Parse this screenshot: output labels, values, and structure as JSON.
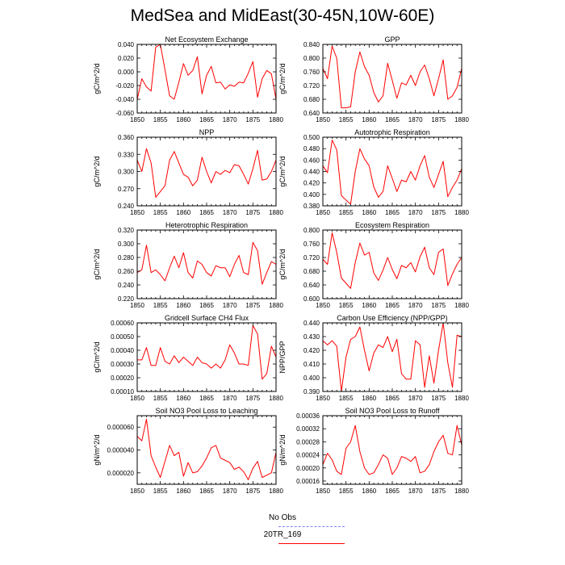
{
  "title": "MedSea and MidEast(30-45N,10W-60E)",
  "legend": {
    "items": [
      {
        "label": "No Obs",
        "color": "#8080ff",
        "style": "dashed"
      },
      {
        "label": "20TR_169",
        "color": "#ff0000",
        "style": "solid"
      }
    ]
  },
  "chart_data": [
    {
      "type": "line",
      "title": "Net Ecosystem Exchange",
      "ylabel": "gC/m^2/d",
      "xlim": [
        1850,
        1880
      ],
      "ylim": [
        -0.06,
        0.04
      ],
      "xticks": [
        1850,
        1855,
        1860,
        1865,
        1870,
        1875,
        1880
      ],
      "yticks": [
        -0.06,
        -0.04,
        -0.02,
        0.0,
        0.02,
        0.04
      ],
      "ytick_labels": [
        "-0.060",
        "-0.040",
        "-0.020",
        "0.000",
        "0.020",
        "0.040"
      ],
      "x": [
        1850,
        1851,
        1852,
        1853,
        1854,
        1855,
        1856,
        1857,
        1858,
        1859,
        1860,
        1861,
        1862,
        1863,
        1864,
        1865,
        1866,
        1867,
        1868,
        1869,
        1870,
        1871,
        1872,
        1873,
        1874,
        1875,
        1876,
        1877,
        1878,
        1879,
        1880
      ],
      "series": [
        {
          "color": "#ff0000",
          "values": [
            -0.04,
            -0.01,
            -0.022,
            -0.028,
            0.036,
            0.04,
            0.003,
            -0.035,
            -0.04,
            -0.015,
            0.012,
            -0.005,
            0.002,
            0.022,
            -0.032,
            -0.005,
            0.008,
            -0.016,
            -0.015,
            -0.025,
            -0.019,
            -0.021,
            -0.015,
            -0.016,
            -0.002,
            0.015,
            -0.037,
            -0.01,
            0.002,
            -0.003,
            -0.04
          ]
        }
      ]
    },
    {
      "type": "line",
      "title": "GPP",
      "ylabel": "gC/m^2/d",
      "xlim": [
        1850,
        1880
      ],
      "ylim": [
        0.64,
        0.84
      ],
      "xticks": [
        1850,
        1855,
        1860,
        1865,
        1870,
        1875,
        1880
      ],
      "yticks": [
        0.64,
        0.68,
        0.72,
        0.76,
        0.8,
        0.84
      ],
      "ytick_labels": [
        "0.640",
        "0.680",
        "0.720",
        "0.760",
        "0.800",
        "0.840"
      ],
      "x": [
        1850,
        1851,
        1852,
        1853,
        1854,
        1855,
        1856,
        1857,
        1858,
        1859,
        1860,
        1861,
        1862,
        1863,
        1864,
        1865,
        1866,
        1867,
        1868,
        1869,
        1870,
        1871,
        1872,
        1873,
        1874,
        1875,
        1876,
        1877,
        1878,
        1879,
        1880
      ],
      "series": [
        {
          "color": "#ff0000",
          "values": [
            0.77,
            0.74,
            0.835,
            0.8,
            0.655,
            0.655,
            0.658,
            0.76,
            0.818,
            0.775,
            0.75,
            0.7,
            0.672,
            0.69,
            0.785,
            0.735,
            0.683,
            0.728,
            0.722,
            0.75,
            0.72,
            0.76,
            0.78,
            0.74,
            0.69,
            0.74,
            0.795,
            0.68,
            0.69,
            0.715,
            0.77
          ]
        }
      ]
    },
    {
      "type": "line",
      "title": "NPP",
      "ylabel": "gC/m^2/d",
      "xlim": [
        1850,
        1880
      ],
      "ylim": [
        0.24,
        0.36
      ],
      "xticks": [
        1850,
        1855,
        1860,
        1865,
        1870,
        1875,
        1880
      ],
      "yticks": [
        0.24,
        0.27,
        0.3,
        0.33,
        0.36
      ],
      "ytick_labels": [
        "0.240",
        "0.270",
        "0.300",
        "0.330",
        "0.360"
      ],
      "x": [
        1850,
        1851,
        1852,
        1853,
        1854,
        1855,
        1856,
        1857,
        1858,
        1859,
        1860,
        1861,
        1862,
        1863,
        1864,
        1865,
        1866,
        1867,
        1868,
        1869,
        1870,
        1871,
        1872,
        1873,
        1874,
        1875,
        1876,
        1877,
        1878,
        1879,
        1880
      ],
      "series": [
        {
          "color": "#ff0000",
          "values": [
            0.32,
            0.3,
            0.34,
            0.315,
            0.255,
            0.265,
            0.275,
            0.32,
            0.335,
            0.315,
            0.295,
            0.29,
            0.275,
            0.285,
            0.325,
            0.3,
            0.28,
            0.3,
            0.295,
            0.302,
            0.298,
            0.312,
            0.31,
            0.295,
            0.278,
            0.305,
            0.337,
            0.285,
            0.287,
            0.3,
            0.32
          ]
        }
      ]
    },
    {
      "type": "line",
      "title": "Autotrophic Respiration",
      "ylabel": "gC/m^2/d",
      "xlim": [
        1850,
        1880
      ],
      "ylim": [
        0.38,
        0.5
      ],
      "xticks": [
        1850,
        1855,
        1860,
        1865,
        1870,
        1875,
        1880
      ],
      "yticks": [
        0.38,
        0.4,
        0.42,
        0.44,
        0.46,
        0.48,
        0.5
      ],
      "ytick_labels": [
        "0.380",
        "0.400",
        "0.420",
        "0.440",
        "0.460",
        "0.480",
        "0.500"
      ],
      "x": [
        1850,
        1851,
        1852,
        1853,
        1854,
        1855,
        1856,
        1857,
        1858,
        1859,
        1860,
        1861,
        1862,
        1863,
        1864,
        1865,
        1866,
        1867,
        1868,
        1869,
        1870,
        1871,
        1872,
        1873,
        1874,
        1875,
        1876,
        1877,
        1878,
        1879,
        1880
      ],
      "series": [
        {
          "color": "#ff0000",
          "values": [
            0.45,
            0.438,
            0.495,
            0.478,
            0.398,
            0.39,
            0.383,
            0.44,
            0.48,
            0.462,
            0.45,
            0.413,
            0.395,
            0.405,
            0.45,
            0.428,
            0.405,
            0.425,
            0.422,
            0.44,
            0.425,
            0.45,
            0.468,
            0.43,
            0.412,
            0.435,
            0.458,
            0.396,
            0.412,
            0.425,
            0.445
          ]
        }
      ]
    },
    {
      "type": "line",
      "title": "Heterotrophic Respiration",
      "ylabel": "gC/m^2/d",
      "xlim": [
        1850,
        1880
      ],
      "ylim": [
        0.22,
        0.32
      ],
      "xticks": [
        1850,
        1855,
        1860,
        1865,
        1870,
        1875,
        1880
      ],
      "yticks": [
        0.22,
        0.24,
        0.26,
        0.28,
        0.3,
        0.32
      ],
      "ytick_labels": [
        "0.220",
        "0.240",
        "0.260",
        "0.280",
        "0.300",
        "0.320"
      ],
      "x": [
        1850,
        1851,
        1852,
        1853,
        1854,
        1855,
        1856,
        1857,
        1858,
        1859,
        1860,
        1861,
        1862,
        1863,
        1864,
        1865,
        1866,
        1867,
        1868,
        1869,
        1870,
        1871,
        1872,
        1873,
        1874,
        1875,
        1876,
        1877,
        1878,
        1879,
        1880
      ],
      "series": [
        {
          "color": "#ff0000",
          "values": [
            0.258,
            0.262,
            0.298,
            0.258,
            0.262,
            0.255,
            0.246,
            0.265,
            0.282,
            0.265,
            0.287,
            0.258,
            0.25,
            0.275,
            0.27,
            0.258,
            0.253,
            0.268,
            0.265,
            0.265,
            0.252,
            0.27,
            0.283,
            0.258,
            0.255,
            0.302,
            0.29,
            0.241,
            0.258,
            0.274,
            0.27
          ]
        }
      ]
    },
    {
      "type": "line",
      "title": "Ecosystem Respiration",
      "ylabel": "gC/m^2/d",
      "xlim": [
        1850,
        1880
      ],
      "ylim": [
        0.6,
        0.8
      ],
      "xticks": [
        1850,
        1855,
        1860,
        1865,
        1870,
        1875,
        1880
      ],
      "yticks": [
        0.6,
        0.64,
        0.68,
        0.72,
        0.76,
        0.8
      ],
      "ytick_labels": [
        "0.600",
        "0.640",
        "0.680",
        "0.720",
        "0.760",
        "0.800"
      ],
      "x": [
        1850,
        1851,
        1852,
        1853,
        1854,
        1855,
        1856,
        1857,
        1858,
        1859,
        1860,
        1861,
        1862,
        1863,
        1864,
        1865,
        1866,
        1867,
        1868,
        1869,
        1870,
        1871,
        1872,
        1873,
        1874,
        1875,
        1876,
        1877,
        1878,
        1879,
        1880
      ],
      "series": [
        {
          "color": "#ff0000",
          "values": [
            0.715,
            0.7,
            0.792,
            0.735,
            0.66,
            0.645,
            0.63,
            0.705,
            0.762,
            0.727,
            0.735,
            0.675,
            0.653,
            0.683,
            0.72,
            0.685,
            0.658,
            0.697,
            0.69,
            0.705,
            0.678,
            0.722,
            0.75,
            0.69,
            0.67,
            0.735,
            0.745,
            0.638,
            0.672,
            0.7,
            0.72
          ]
        }
      ]
    },
    {
      "type": "line",
      "title": "Gridcell Surface CH4 Flux",
      "ylabel": "gC/m^2/d",
      "xlim": [
        1850,
        1880
      ],
      "ylim": [
        0.0001,
        0.0006
      ],
      "xticks": [
        1850,
        1855,
        1860,
        1865,
        1870,
        1875,
        1880
      ],
      "yticks": [
        0.0001,
        0.0002,
        0.0003,
        0.0004,
        0.0005,
        0.0006
      ],
      "ytick_labels": [
        "0.00010",
        "0.00020",
        "0.00030",
        "0.00040",
        "0.00050",
        "0.00060"
      ],
      "x": [
        1850,
        1851,
        1852,
        1853,
        1854,
        1855,
        1856,
        1857,
        1858,
        1859,
        1860,
        1861,
        1862,
        1863,
        1864,
        1865,
        1866,
        1867,
        1868,
        1869,
        1870,
        1871,
        1872,
        1873,
        1874,
        1875,
        1876,
        1877,
        1878,
        1879,
        1880
      ],
      "series": [
        {
          "color": "#ff0000",
          "values": [
            0.00033,
            0.00033,
            0.00042,
            0.00029,
            0.00029,
            0.00042,
            0.00032,
            0.0003,
            0.00036,
            0.00031,
            0.00035,
            0.00032,
            0.00029,
            0.00035,
            0.00031,
            0.0003,
            0.00027,
            0.0003,
            0.00027,
            0.00033,
            0.00044,
            0.00038,
            0.0003,
            0.0003,
            0.00029,
            0.00058,
            0.00052,
            0.00019,
            0.00023,
            0.00043,
            0.00035
          ]
        }
      ]
    },
    {
      "type": "line",
      "title": "Carbon Use Efficiency (NPP/GPP)",
      "ylabel": "NPP/GPP",
      "xlim": [
        1850,
        1880
      ],
      "ylim": [
        0.39,
        0.44
      ],
      "xticks": [
        1850,
        1855,
        1860,
        1865,
        1870,
        1875,
        1880
      ],
      "yticks": [
        0.39,
        0.4,
        0.41,
        0.42,
        0.43,
        0.44
      ],
      "ytick_labels": [
        "0.390",
        "0.400",
        "0.410",
        "0.420",
        "0.430",
        "0.440"
      ],
      "x": [
        1850,
        1851,
        1852,
        1853,
        1854,
        1855,
        1856,
        1857,
        1858,
        1859,
        1860,
        1861,
        1862,
        1863,
        1864,
        1865,
        1866,
        1867,
        1868,
        1869,
        1870,
        1871,
        1872,
        1873,
        1874,
        1875,
        1876,
        1877,
        1878,
        1879,
        1880
      ],
      "series": [
        {
          "color": "#ff0000",
          "values": [
            0.427,
            0.424,
            0.427,
            0.423,
            0.39,
            0.415,
            0.428,
            0.43,
            0.437,
            0.42,
            0.405,
            0.418,
            0.424,
            0.422,
            0.43,
            0.419,
            0.428,
            0.403,
            0.399,
            0.399,
            0.427,
            0.424,
            0.393,
            0.416,
            0.396,
            0.42,
            0.44,
            0.411,
            0.393,
            0.431,
            0.43
          ]
        }
      ]
    },
    {
      "type": "line",
      "title": "Soil NO3 Pool Loss to Leaching",
      "ylabel": "gN/m^2/d",
      "xlim": [
        1850,
        1880
      ],
      "ylim": [
        1e-05,
        7e-05
      ],
      "xticks": [
        1850,
        1855,
        1860,
        1865,
        1870,
        1875,
        1880
      ],
      "yticks": [
        2e-05,
        4e-05,
        6e-05
      ],
      "ytick_labels": [
        "0.000020",
        "0.000040",
        "0.000060"
      ],
      "x": [
        1850,
        1851,
        1852,
        1853,
        1854,
        1855,
        1856,
        1857,
        1858,
        1859,
        1860,
        1861,
        1862,
        1863,
        1864,
        1865,
        1866,
        1867,
        1868,
        1869,
        1870,
        1871,
        1872,
        1873,
        1874,
        1875,
        1876,
        1877,
        1878,
        1879,
        1880
      ],
      "series": [
        {
          "color": "#ff0000",
          "values": [
            5.2e-05,
            4.8e-05,
            6.7e-05,
            3.5e-05,
            2.5e-05,
            1.6e-05,
            3e-05,
            4.4e-05,
            3.5e-05,
            3.8e-05,
            1.7e-05,
            2.9e-05,
            2e-05,
            2.1e-05,
            2.6e-05,
            3.3e-05,
            4.2e-05,
            4.4e-05,
            3.3e-05,
            3.1e-05,
            2.9e-05,
            2.3e-05,
            2.5e-05,
            2.1e-05,
            1.4e-05,
            2.4e-05,
            3e-05,
            1.6e-05,
            1.8e-05,
            2e-05,
            3.8e-05
          ]
        }
      ]
    },
    {
      "type": "line",
      "title": "Soil NO3 Pool Loss to Runoff",
      "ylabel": "gN/m^2/d",
      "xlim": [
        1850,
        1880
      ],
      "ylim": [
        0.00015,
        0.00036
      ],
      "xticks": [
        1850,
        1855,
        1860,
        1865,
        1870,
        1875,
        1880
      ],
      "yticks": [
        0.00016,
        0.0002,
        0.00024,
        0.00028,
        0.00032,
        0.00036
      ],
      "ytick_labels": [
        "0.00016",
        "0.00020",
        "0.00024",
        "0.00028",
        "0.00032",
        "0.00036"
      ],
      "x": [
        1850,
        1851,
        1852,
        1853,
        1854,
        1855,
        1856,
        1857,
        1858,
        1859,
        1860,
        1861,
        1862,
        1863,
        1864,
        1865,
        1866,
        1867,
        1868,
        1869,
        1870,
        1871,
        1872,
        1873,
        1874,
        1875,
        1876,
        1877,
        1878,
        1879,
        1880
      ],
      "series": [
        {
          "color": "#ff0000",
          "values": [
            0.00021,
            0.000245,
            0.000225,
            0.00019,
            0.00018,
            0.00026,
            0.00028,
            0.00033,
            0.00025,
            0.0002,
            0.00018,
            0.000185,
            0.00021,
            0.00024,
            0.00023,
            0.00018,
            0.0002,
            0.000235,
            0.00023,
            0.00022,
            0.000235,
            0.000185,
            0.00019,
            0.00021,
            0.00025,
            0.00028,
            0.0003,
            0.000245,
            0.00024,
            0.00033,
            0.00027
          ]
        }
      ]
    }
  ]
}
